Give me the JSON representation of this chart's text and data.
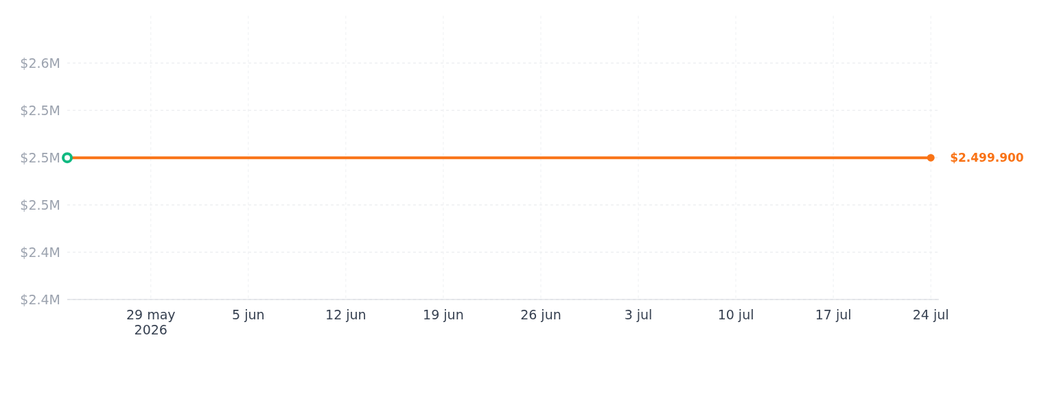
{
  "chart_data": {
    "type": "line",
    "x": [
      "2026-05-23",
      "2026-07-24"
    ],
    "xlim": [
      "2026-05-23",
      "2026-07-24T14:00"
    ],
    "xticks": [
      {
        "value": "2026-05-29",
        "label": "29 may\n2026"
      },
      {
        "value": "2026-06-05",
        "label": "5 jun"
      },
      {
        "value": "2026-06-12",
        "label": "12 jun"
      },
      {
        "value": "2026-06-19",
        "label": "19 jun"
      },
      {
        "value": "2026-06-26",
        "label": "26 jun"
      },
      {
        "value": "2026-07-03",
        "label": "3 jul"
      },
      {
        "value": "2026-07-10",
        "label": "10 jul"
      },
      {
        "value": "2026-07-17",
        "label": "17 jul"
      },
      {
        "value": "2026-07-24",
        "label": "24 jul"
      }
    ],
    "ylim": [
      2380000,
      2620000
    ],
    "yticks": [
      {
        "value": 2380000,
        "label": "$2.4M"
      },
      {
        "value": 2420000,
        "label": "$2.4M"
      },
      {
        "value": 2460000,
        "label": "$2.5M"
      },
      {
        "value": 2500000,
        "label": "$2.5M"
      },
      {
        "value": 2540000,
        "label": "$2.5M"
      },
      {
        "value": 2580000,
        "label": "$2.6M"
      }
    ],
    "grid": true,
    "series": [
      {
        "color": "#f97316",
        "marker": "none",
        "values": [
          2499900,
          2499900
        ]
      },
      {
        "type": "scatter",
        "color": "#10b981",
        "marker": "circle",
        "x": [
          "2026-05-23"
        ],
        "values": [
          2499900
        ]
      },
      {
        "type": "scatter",
        "color": "#f97316",
        "marker": "circle",
        "x": [
          "2026-07-24"
        ],
        "values": [
          2499900
        ]
      }
    ],
    "annotations": [
      {
        "text": "$2.499.900",
        "x": "2026-07-24",
        "y": 2499900
      }
    ]
  }
}
